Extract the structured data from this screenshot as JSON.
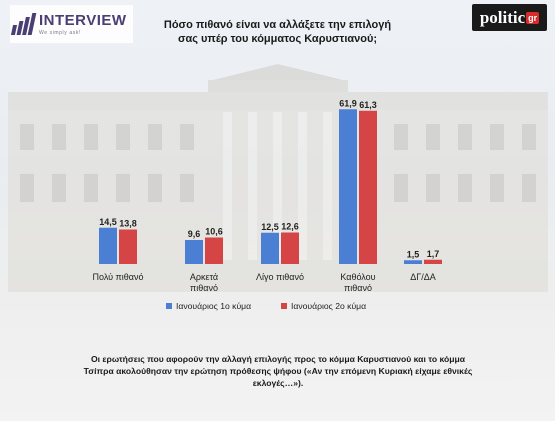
{
  "header": {
    "logo_name": "INTERVIEW",
    "logo_tagline": "We simply ask!",
    "brand_main": "politic",
    "brand_suffix": "gr"
  },
  "chart_data": {
    "type": "bar",
    "title": "Πόσο πιθανό είναι να αλλάξετε την επιλογή σας υπέρ του κόμματος Καρυστιανού;",
    "categories": [
      "Πολύ πιθανό",
      "Αρκετά πιθανό",
      "Λίγο πιθανό",
      "Καθόλου πιθανό",
      "ΔΓ/ΔΑ"
    ],
    "series": [
      {
        "name": "Ιανουάριος 1ο κύμα",
        "values": [
          14.5,
          9.6,
          12.5,
          61.9,
          1.5
        ],
        "labels": [
          "14,5",
          "9,6",
          "12,5",
          "61,9",
          "1,5"
        ],
        "color": "#4a7fd4"
      },
      {
        "name": "Ιανουάριος 2ο κύμα",
        "values": [
          13.8,
          10.6,
          12.6,
          61.3,
          1.7
        ],
        "labels": [
          "13,8",
          "10,6",
          "12,6",
          "61,3",
          "1,7"
        ],
        "color": "#d64545"
      }
    ],
    "ylim": [
      0,
      65
    ],
    "grid": false,
    "legend_position": "bottom"
  },
  "footnote": "Οι ερωτήσεις που αφορούν την αλλαγή επιλογής προς το κόμμα Καρυστιανού και το κόμμα Τσίπρα ακολούθησαν την ερώτηση πρόθεσης ψήφου («Αν την επόμενη Κυριακή είχαμε εθνικές εκλογές…»)."
}
